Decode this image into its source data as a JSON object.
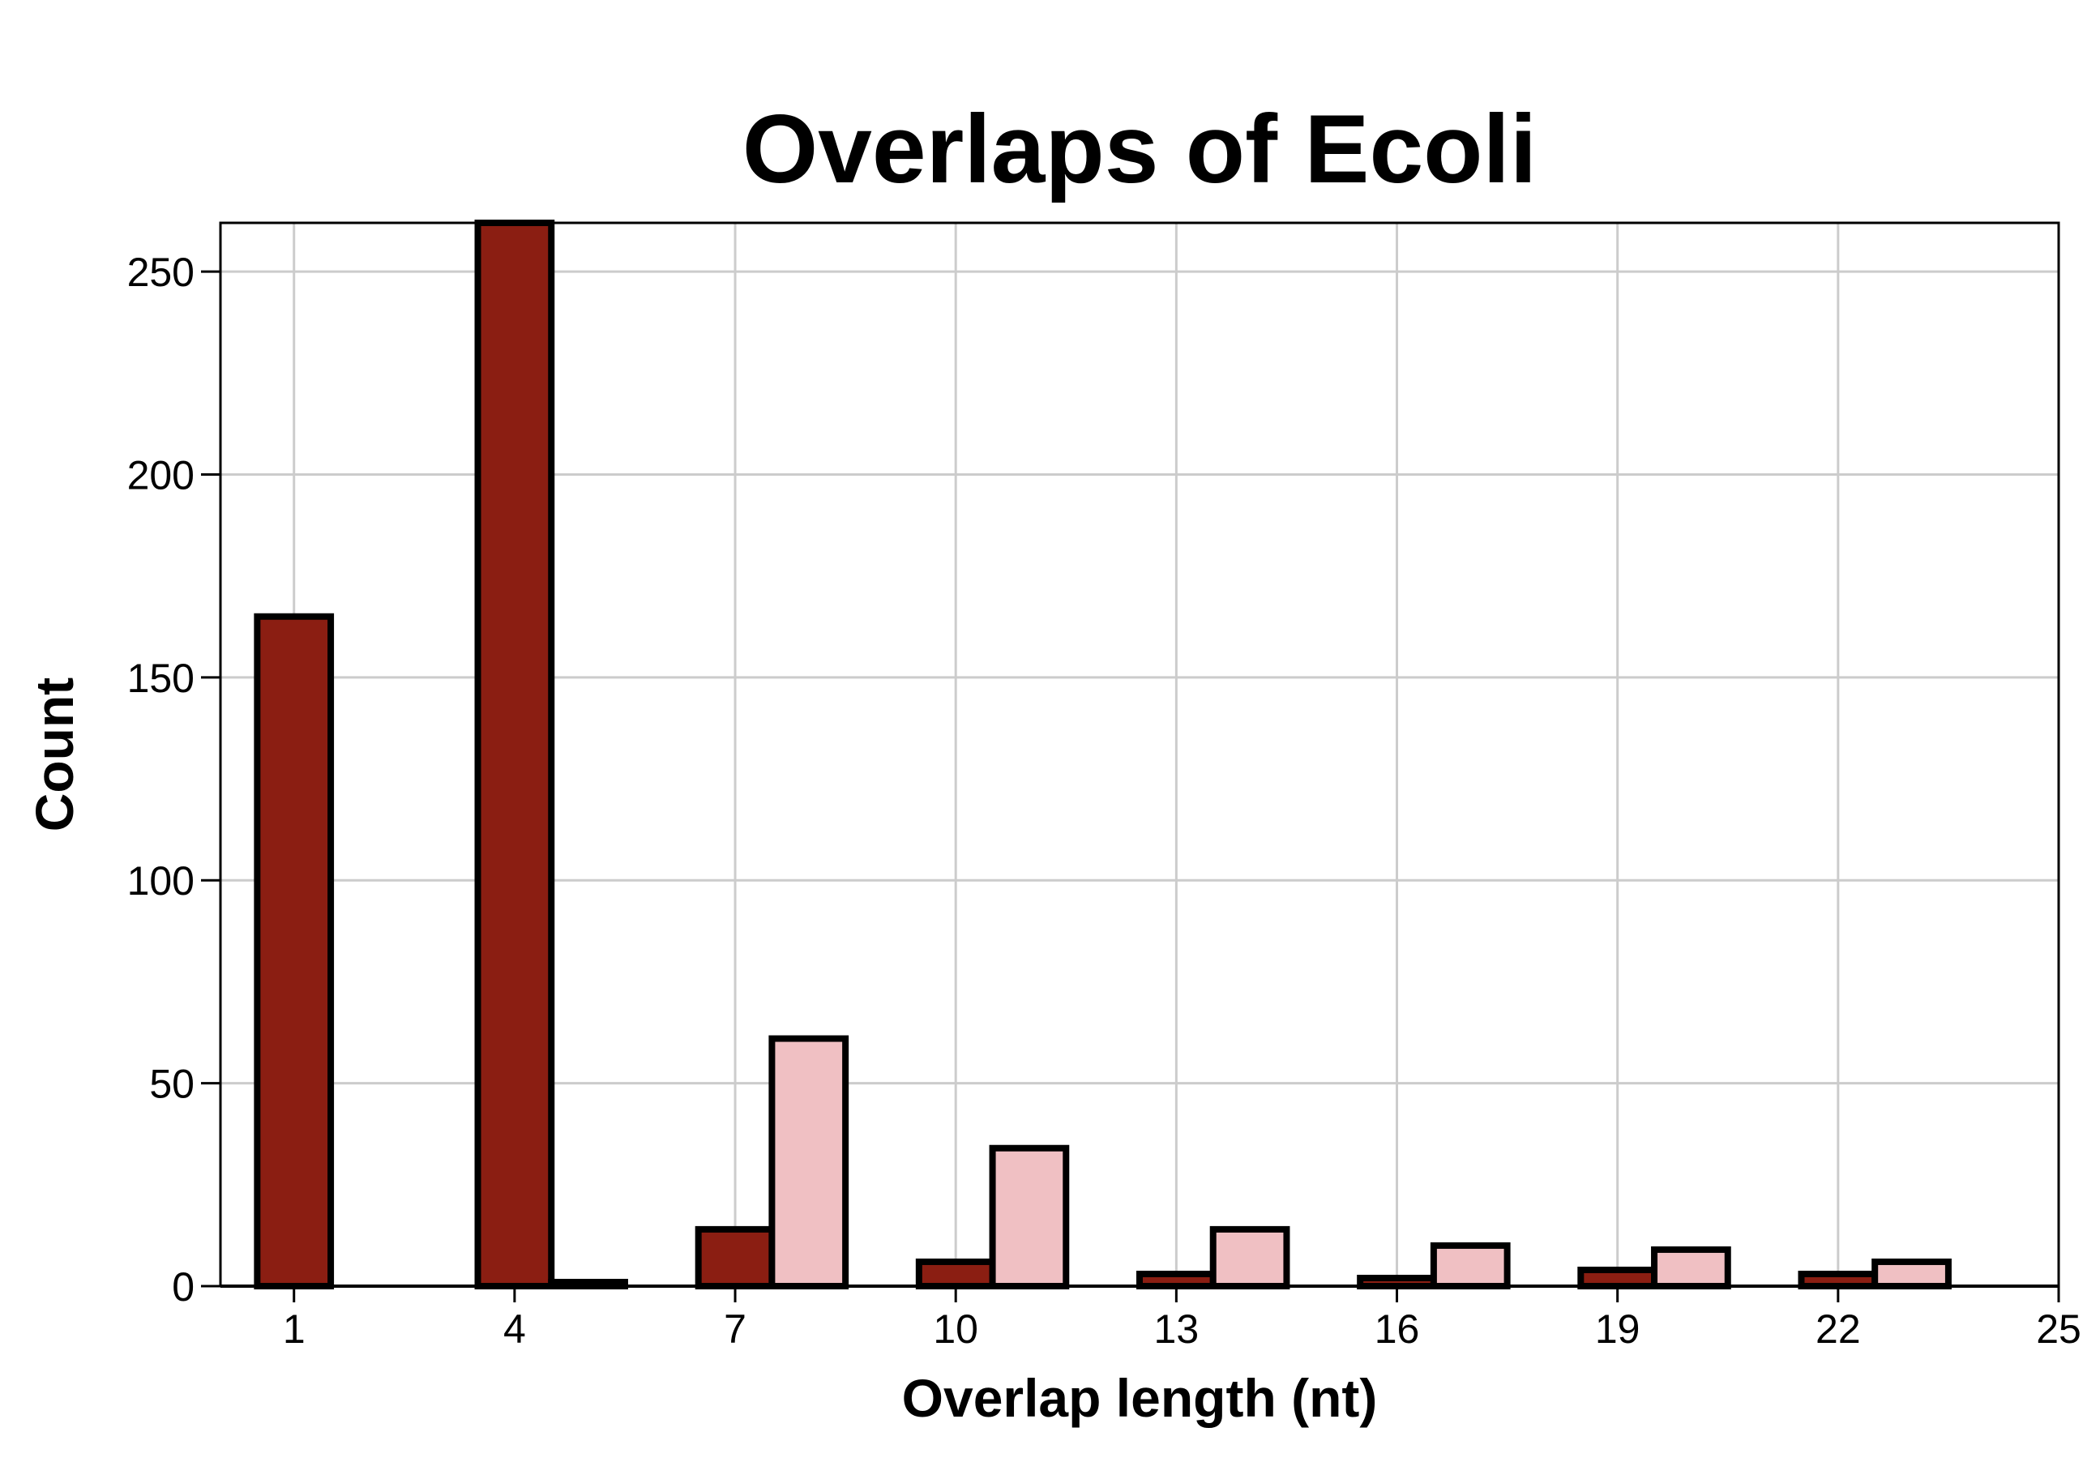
{
  "chart_data": {
    "type": "bar",
    "title": "Overlaps of Ecoli",
    "xlabel": "Overlap length (nt)",
    "ylabel": "Count",
    "xlim": [
      0,
      25
    ],
    "ylim": [
      0,
      262
    ],
    "xticks": [
      1,
      4,
      7,
      10,
      13,
      16,
      19,
      22,
      25
    ],
    "yticks": [
      0,
      50,
      100,
      150,
      200,
      250
    ],
    "grid": true,
    "bin_width": 1,
    "bins": [
      0.5,
      1.5,
      2.5,
      3.5,
      4.5,
      5.5,
      6.5,
      7.5,
      8.5,
      9.5,
      10.5,
      11.5,
      12.5,
      13.5,
      14.5,
      15.5,
      16.5,
      17.5,
      18.5,
      19.5,
      20.5,
      21.5,
      22.5,
      23.5
    ],
    "series": [
      {
        "color": "#8b1e12",
        "values": [
          165,
          0,
          0,
          262,
          1,
          0,
          14,
          0,
          0,
          6,
          0,
          0,
          3,
          0,
          0,
          2,
          0,
          0,
          4,
          0,
          0,
          3,
          0,
          0
        ]
      },
      {
        "color": "#f0c0c3",
        "values": [
          0,
          0,
          0,
          0,
          0,
          0,
          0,
          61,
          0,
          0,
          34,
          0,
          0,
          14,
          0,
          0,
          10,
          0,
          0,
          9,
          0,
          0,
          6,
          0
        ]
      }
    ]
  }
}
